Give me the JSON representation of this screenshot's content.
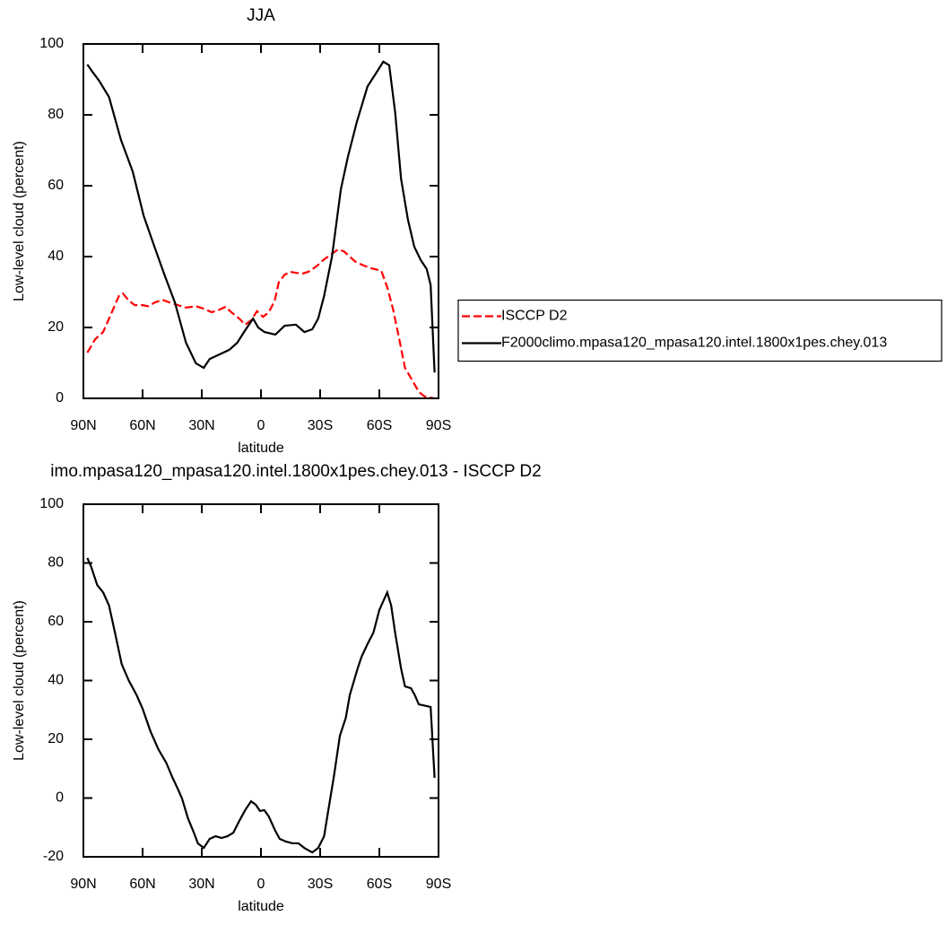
{
  "chart_data": [
    {
      "type": "line",
      "title": "JJA",
      "x_label": "latitude",
      "y_label": "Low-level cloud (percent)",
      "xlim": [
        90,
        -90
      ],
      "xticks": [
        {
          "value": 90,
          "label": "90N"
        },
        {
          "value": 60,
          "label": "60N"
        },
        {
          "value": 30,
          "label": "30N"
        },
        0,
        {
          "value": -30,
          "label": "30S"
        },
        {
          "value": -60,
          "label": "60S"
        },
        {
          "value": -90,
          "label": "90S"
        }
      ],
      "ylim": [
        0,
        100
      ],
      "yticks": [
        0,
        20,
        40,
        60,
        80,
        100
      ],
      "legend": "right",
      "series": [
        {
          "name": "ISCCP D2",
          "color": "#ff0000",
          "dashed": true,
          "x": [
            88,
            84,
            80,
            77,
            72,
            70,
            67,
            64,
            60,
            57,
            54,
            50,
            46,
            42,
            38,
            33,
            29,
            25,
            22,
            18,
            15,
            11,
            8,
            5,
            2,
            -1,
            -4,
            -7,
            -9,
            -12,
            -15,
            -18,
            -21,
            -24,
            -28,
            -32,
            -36,
            -39,
            -42,
            -45,
            -48,
            -52,
            -56,
            -61,
            -64,
            -67,
            -70,
            -73,
            -77,
            -80,
            -83,
            -88
          ],
          "values": [
            12.9,
            16.7,
            18.7,
            22.5,
            28.9,
            29.6,
            27.6,
            26.3,
            26.3,
            26,
            27,
            27.8,
            27,
            26.3,
            25.6,
            26,
            25.3,
            24.3,
            24.8,
            25.8,
            24.3,
            22.5,
            20.8,
            22,
            24.6,
            23,
            24.3,
            27.6,
            32.7,
            34.9,
            35.7,
            35.4,
            35.2,
            35.7,
            37.2,
            39.2,
            40.8,
            42,
            41.5,
            40,
            38.5,
            37.5,
            36.7,
            36,
            31.4,
            25,
            17,
            8.6,
            4.8,
            1.8,
            0.5,
            0
          ]
        },
        {
          "name": "F2000climo.mpasa120_mpasa120.intel.1800x1pes.chey.013",
          "color": "#000000",
          "dashed": false,
          "x": [
            88,
            85.5,
            82,
            77,
            71,
            65,
            59.5,
            54,
            49,
            43.6,
            38,
            33,
            29,
            26,
            21,
            16,
            12,
            8.6,
            4,
            1.4,
            -1.8,
            -7.3,
            -12,
            -17.7,
            -22,
            -26,
            -29,
            -32,
            -36,
            -40.5,
            -44,
            -48.6,
            -54,
            -58.6,
            -62,
            -65,
            -68,
            -71,
            -74.5,
            -77.7,
            -81,
            -84,
            -86,
            -88
          ],
          "values": [
            94.2,
            92.2,
            89.6,
            85,
            73,
            64,
            51.6,
            42.8,
            35,
            27,
            15.7,
            9.9,
            8.6,
            11.1,
            12.4,
            13.7,
            15.7,
            18.7,
            22.5,
            20,
            18.7,
            18,
            20.5,
            20.8,
            18.7,
            19.5,
            22.5,
            28.9,
            40,
            59,
            68,
            78,
            88,
            92,
            95,
            94,
            80.8,
            62,
            50.4,
            42.8,
            39,
            36.5,
            32,
            7.3
          ]
        }
      ]
    },
    {
      "type": "line",
      "title": "imo.mpasa120_mpasa120.intel.1800x1pes.chey.013 - ISCCP D2",
      "x_label": "latitude",
      "y_label": "Low-level cloud (percent)",
      "xlim": [
        90,
        -90
      ],
      "xticks": [
        {
          "value": 90,
          "label": "90N"
        },
        {
          "value": 60,
          "label": "60N"
        },
        {
          "value": 30,
          "label": "30N"
        },
        0,
        {
          "value": -30,
          "label": "30S"
        },
        {
          "value": -60,
          "label": "60S"
        },
        {
          "value": -90,
          "label": "90S"
        }
      ],
      "ylim": [
        -20,
        100
      ],
      "yticks": [
        -20,
        0,
        20,
        40,
        60,
        80,
        100
      ],
      "series": [
        {
          "color": "#000000",
          "dashed": false,
          "x": [
            88,
            86,
            83,
            80,
            77,
            74,
            70.6,
            67,
            63,
            60,
            56,
            52,
            48,
            45,
            42,
            40,
            37,
            34,
            32,
            29,
            26,
            23,
            20,
            17,
            14,
            11,
            8,
            5,
            2.6,
            0.5,
            -1.7,
            -4,
            -7,
            -9.5,
            -12.6,
            -16,
            -19,
            -22,
            -26,
            -29,
            -32,
            -34,
            -37,
            -40,
            -43,
            -45,
            -49,
            -51,
            -54,
            -57,
            -60,
            -62,
            -64,
            -66,
            -68,
            -71,
            -73,
            -76,
            -78,
            -80,
            -86,
            -88
          ],
          "values": [
            81.7,
            78.6,
            72.5,
            70,
            65.5,
            56.3,
            45.6,
            40,
            35,
            30.4,
            22.7,
            16.6,
            12,
            7.2,
            2.9,
            -0.2,
            -6.9,
            -11.8,
            -15.4,
            -17,
            -13.9,
            -13,
            -13.6,
            -13,
            -11.8,
            -7.8,
            -4.1,
            -1.1,
            -2.3,
            -4.4,
            -4.1,
            -6.3,
            -10.8,
            -13.9,
            -14.8,
            -15.4,
            -15.4,
            -17,
            -18.5,
            -17,
            -13,
            -4.7,
            7.5,
            21.2,
            27.3,
            35,
            44.1,
            48.1,
            52.4,
            56.3,
            64,
            67,
            70,
            65.5,
            56.3,
            44.1,
            38,
            37.4,
            35,
            31.9,
            31,
            6.9
          ]
        }
      ]
    }
  ]
}
